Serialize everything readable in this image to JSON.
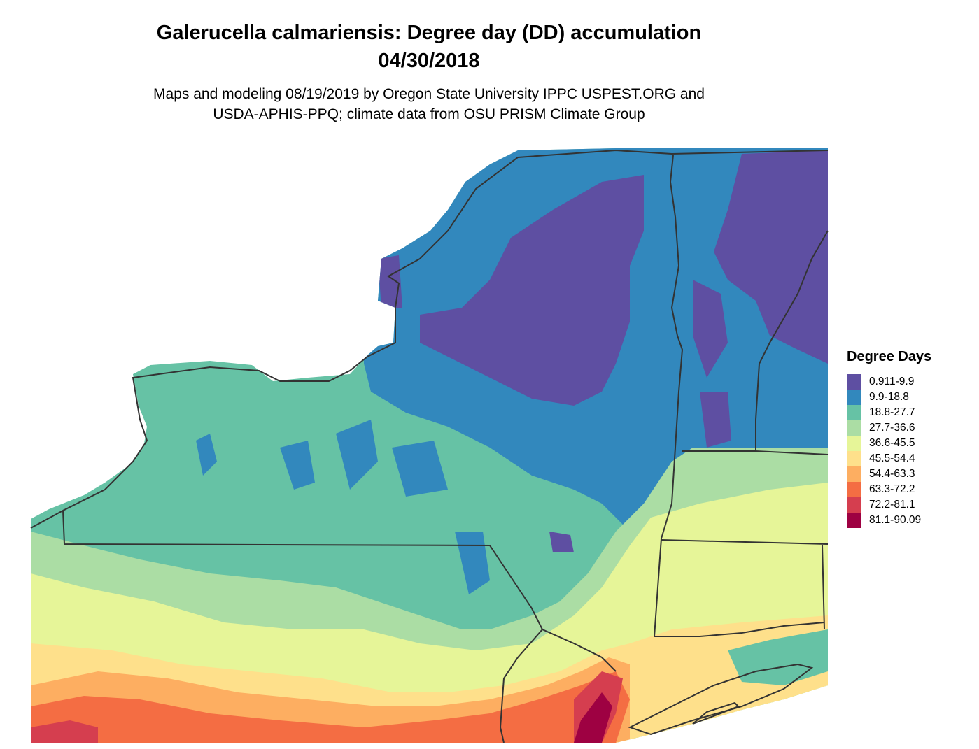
{
  "header": {
    "title_line1": "Galerucella calmariensis: Degree day (DD) accumulation",
    "title_line2": "04/30/2018",
    "subtitle_line1": "Maps and modeling 08/19/2019 by Oregon State University IPPC USPEST.ORG and",
    "subtitle_line2": "USDA-APHIS-PPQ; climate data from OSU PRISM Climate Group"
  },
  "legend": {
    "title": "Degree Days",
    "items": [
      {
        "label": "0.911-9.9",
        "color": "#5e4fa2"
      },
      {
        "label": "9.9-18.8",
        "color": "#3288bd"
      },
      {
        "label": "18.8-27.7",
        "color": "#66c2a5"
      },
      {
        "label": "27.7-36.6",
        "color": "#abdda4"
      },
      {
        "label": "36.6-45.5",
        "color": "#e6f598"
      },
      {
        "label": "45.5-54.4",
        "color": "#fee08b"
      },
      {
        "label": "54.4-63.3",
        "color": "#fdae61"
      },
      {
        "label": "63.3-72.2",
        "color": "#f46d43"
      },
      {
        "label": "72.2-81.1",
        "color": "#d53e4f"
      },
      {
        "label": "81.1-90.09",
        "color": "#9e0142"
      }
    ]
  }
}
